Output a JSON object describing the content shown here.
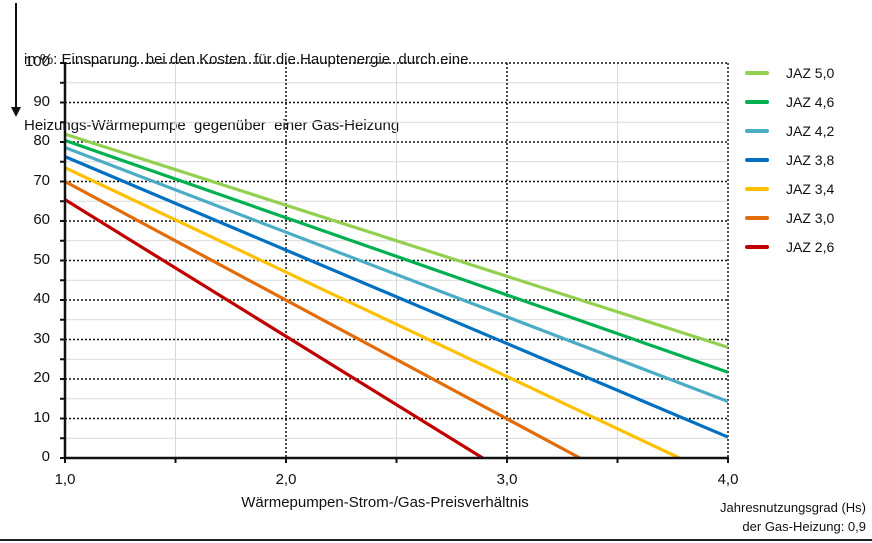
{
  "header": {
    "title_line1": "in %: Einsparung  bei den Kosten  für die Hauptenergie  durch eine",
    "title_line2": "Heizungs-Wärmepumpe  gegenüber  einer Gas-Heizung"
  },
  "axes": {
    "y_ticks": [
      "100",
      "90",
      "80",
      "70",
      "60",
      "50",
      "40",
      "30",
      "20",
      "10",
      "0"
    ],
    "x_ticks": [
      "1,0",
      "2,0",
      "3,0",
      "4,0"
    ],
    "x_title": "Wärmepumpen-Strom-/Gas-Preisverhältnis"
  },
  "note": {
    "line1": "Jahresnutzungsgrad (Hs)",
    "line2": "der Gas-Heizung: 0,9"
  },
  "legend": [
    {
      "label": "JAZ 5,0",
      "color": "#92D050"
    },
    {
      "label": "JAZ 4,6",
      "color": "#00B050"
    },
    {
      "label": "JAZ 4,2",
      "color": "#4BACC6"
    },
    {
      "label": "JAZ 3,8",
      "color": "#0070C0"
    },
    {
      "label": "JAZ 3,4",
      "color": "#FFC000"
    },
    {
      "label": "JAZ 3,0",
      "color": "#E36C0A"
    },
    {
      "label": "JAZ 2,6",
      "color": "#C00000"
    }
  ],
  "chart_data": {
    "type": "line",
    "title": "in %: Einsparung bei den Kosten für die Hauptenergie durch eine Heizungs-Wärmepumpe gegenüber einer Gas-Heizung",
    "xlabel": "Wärmepumpen-Strom-/Gas-Preisverhältnis",
    "ylabel": "in %",
    "xlim": [
      1.0,
      4.0
    ],
    "ylim": [
      0,
      100
    ],
    "x_ticks": [
      1.0,
      2.0,
      3.0,
      4.0
    ],
    "y_ticks": [
      0,
      10,
      20,
      30,
      40,
      50,
      60,
      70,
      80,
      90,
      100
    ],
    "grid": true,
    "legend_position": "right",
    "annotation": "Jahresnutzungsgrad (Hs) der Gas-Heizung: 0,9",
    "series": [
      {
        "name": "JAZ 5,0",
        "color": "#92D050",
        "x": [
          1.0,
          4.0
        ],
        "y": [
          82.0,
          28.0
        ]
      },
      {
        "name": "JAZ 4,6",
        "color": "#00B050",
        "x": [
          1.0,
          4.0
        ],
        "y": [
          80.4,
          21.7
        ]
      },
      {
        "name": "JAZ 4,2",
        "color": "#4BACC6",
        "x": [
          1.0,
          4.0
        ],
        "y": [
          78.6,
          14.3
        ]
      },
      {
        "name": "JAZ 3,8",
        "color": "#0070C0",
        "x": [
          1.0,
          4.0
        ],
        "y": [
          76.3,
          5.3
        ]
      },
      {
        "name": "JAZ 3,4",
        "color": "#FFC000",
        "x": [
          1.0,
          3.78
        ],
        "y": [
          73.5,
          0
        ]
      },
      {
        "name": "JAZ 3,0",
        "color": "#E36C0A",
        "x": [
          1.0,
          3.33
        ],
        "y": [
          70.0,
          0
        ]
      },
      {
        "name": "JAZ 2,6",
        "color": "#C00000",
        "x": [
          1.0,
          2.89
        ],
        "y": [
          65.4,
          0
        ]
      }
    ]
  }
}
